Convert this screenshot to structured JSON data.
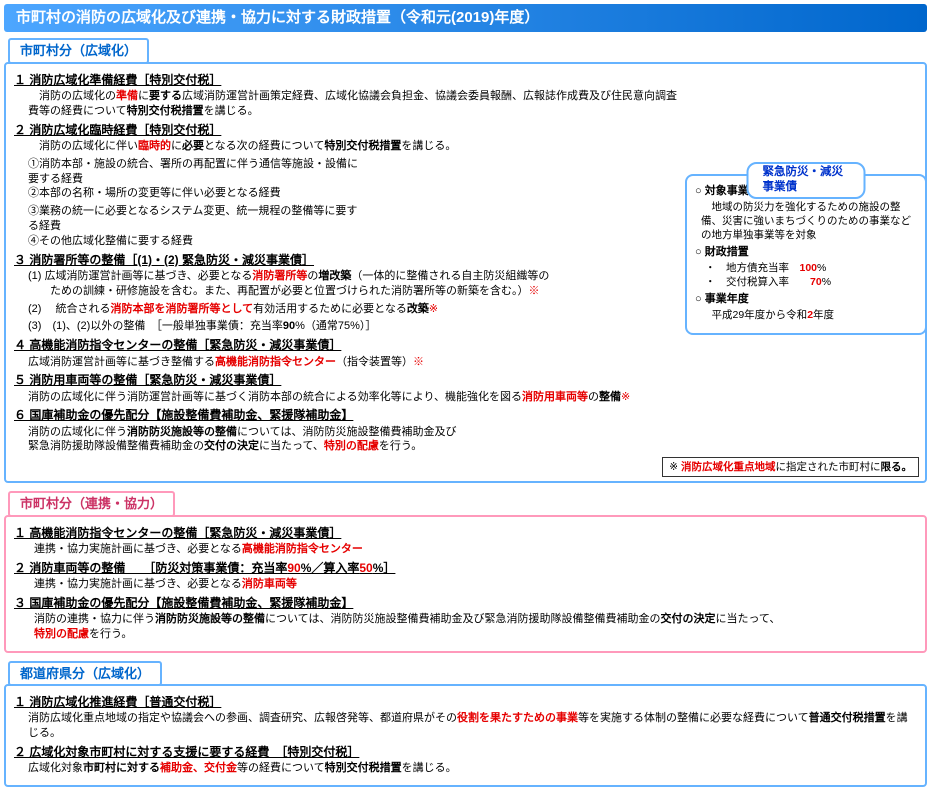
{
  "header": "市町村の消防の広域化及び連携・協力に対する財政措置（令和元(2019)年度）",
  "section1": {
    "tab": "市町村分（広域化）",
    "items": [
      {
        "head": "１ 消防広域化準備経費［特別交付税］",
        "body": [
          {
            "segs": [
              {
                "t": "　消防の広域化の"
              },
              {
                "t": "準備",
                "cls": "red bold"
              },
              {
                "t": "に"
              },
              {
                "t": "要する",
                "cls": "bold"
              },
              {
                "t": "広域消防運営計画策定経費、広域化協議会負担金、協議会委員報酬、広報誌作成費及び住民意向調査費等の経費について"
              },
              {
                "t": "特別交付税措置",
                "cls": "bold"
              },
              {
                "t": "を講じる。"
              }
            ]
          }
        ]
      },
      {
        "head": "２ 消防広域化臨時経費［特別交付税］",
        "body": [
          {
            "segs": [
              {
                "t": "　消防の広域化に伴い"
              },
              {
                "t": "臨時的",
                "cls": "red bold"
              },
              {
                "t": "に"
              },
              {
                "t": "必要",
                "cls": "bold"
              },
              {
                "t": "となる次の経費について"
              },
              {
                "t": "特別交付税措置",
                "cls": "bold"
              },
              {
                "t": "を講じる。"
              }
            ]
          },
          {
            "cols": [
              {
                "t": "①消防本部・施設の統合、署所の再配置に伴う通信等施設・設備に要する経費"
              },
              {
                "t": "②本部の名称・場所の変更等に伴い必要となる経費"
              }
            ]
          },
          {
            "cols": [
              {
                "t": "③業務の統一に必要となるシステム変更、統一規程の整備等に要する経費"
              },
              {
                "t": "④その他広域化整備に要する経費"
              }
            ]
          }
        ]
      },
      {
        "head": "３ 消防署所等の整備［(1)・(2) 緊急防災・減災事業債］",
        "body": [
          {
            "segs": [
              {
                "t": "(1) 広域消防運営計画等に基づき、必要となる"
              },
              {
                "t": "消防署所等",
                "cls": "red bold"
              },
              {
                "t": "の"
              },
              {
                "t": "増改築",
                "cls": "bold"
              },
              {
                "t": "（一体的に整備される自主防災組織等の\n　　ための訓練・研修施設を含む。また、再配置が必要と位置づけられた消防署所等の新築を含む。）"
              },
              {
                "t": "※",
                "cls": "red"
              }
            ]
          },
          {
            "segs": [
              {
                "t": "(2) 　統合される"
              },
              {
                "t": "消防本部を消防署所等として",
                "cls": "red bold"
              },
              {
                "t": "有効活用するために必要となる"
              },
              {
                "t": "改築",
                "cls": "bold"
              },
              {
                "t": "※",
                "cls": "red"
              }
            ]
          },
          {
            "segs": [
              {
                "t": "(3)　(1)、(2)以外の整備　［一般単独事業債：充当率"
              },
              {
                "t": "90",
                "cls": "bold"
              },
              {
                "t": "%（通常75%）］"
              }
            ]
          }
        ]
      },
      {
        "head": "４ 高機能消防指令センターの整備［緊急防災・減災事業債］",
        "body": [
          {
            "segs": [
              {
                "t": "広域消防運営計画等に基づき整備する"
              },
              {
                "t": "高機能消防指令センター",
                "cls": "red bold"
              },
              {
                "t": "（指令装置等）"
              },
              {
                "t": "※",
                "cls": "red"
              }
            ]
          }
        ]
      },
      {
        "head": "５ 消防用車両等の整備［緊急防災・減災事業債］",
        "body": [
          {
            "segs": [
              {
                "t": "消防の広域化に伴う消防運営計画等に基づく消防本部の統合による効率化等により、機能強化を図る"
              },
              {
                "t": "消防用車両等",
                "cls": "red bold"
              },
              {
                "t": "の"
              },
              {
                "t": "整備",
                "cls": "bold"
              },
              {
                "t": "※",
                "cls": "red"
              }
            ]
          }
        ]
      },
      {
        "head": "６ 国庫補助金の優先配分【施設整備費補助金、緊援隊補助金】",
        "body": [
          {
            "segs": [
              {
                "t": "消防の広域化に伴う"
              },
              {
                "t": "消防防災施設等の整備",
                "cls": "bold"
              },
              {
                "t": "については、消防防災施設整備費補助金及び\n緊急消防援助隊設備整備費補助金の"
              },
              {
                "t": "交付の決定",
                "cls": "bold"
              },
              {
                "t": "に当たって、"
              },
              {
                "t": "特別の配慮",
                "cls": "red bold"
              },
              {
                "t": "を行う。"
              }
            ]
          }
        ]
      }
    ],
    "callout": {
      "tab": "緊急防災・減災事業債",
      "s1h": "○ 対象事業",
      "s1b": "　地域の防災力を強化するための施設の整備、災害に強いまちづくりのための事業などの地方単独事業等を対象",
      "s2h": "○ 財政措置",
      "s2a_pre": "・　地方債充当率　",
      "s2a_val": "100",
      "s2a_suf": "%",
      "s2b_pre": "・　交付税算入率　　",
      "s2b_val": "70",
      "s2b_suf": "%",
      "s3h": "○ 事業年度",
      "s3b_pre": "　平成29年度から令和",
      "s3b_val": "2",
      "s3b_suf": "年度"
    },
    "note": {
      "pre": "※ ",
      "red": "消防広域化重点地域",
      "mid": "に指定された市町村に",
      "bold": "限る。"
    }
  },
  "section2": {
    "tab": "市町村分（連携・協力）",
    "items": [
      {
        "head": "１ 高機能消防指令センターの整備［緊急防災・減災事業債］",
        "body": [
          {
            "segs": [
              {
                "t": "連携・協力実施計画に基づき、必要となる"
              },
              {
                "t": "高機能消防指令センター",
                "cls": "red bold"
              }
            ]
          }
        ]
      },
      {
        "head_segs": [
          {
            "t": "２ 消防車両等の整備　　［防災対策事業債：充当率"
          },
          {
            "t": "90",
            "cls": "red"
          },
          {
            "t": "%／算入率"
          },
          {
            "t": "50",
            "cls": "red"
          },
          {
            "t": "%］"
          }
        ],
        "body": [
          {
            "segs": [
              {
                "t": "連携・協力実施計画に基づき、必要となる"
              },
              {
                "t": "消防車両等",
                "cls": "red bold"
              }
            ]
          }
        ]
      },
      {
        "head": "３ 国庫補助金の優先配分【施設整備費補助金、緊援隊補助金】",
        "body": [
          {
            "segs": [
              {
                "t": "消防の連携・協力に伴う"
              },
              {
                "t": "消防防災施設等の整備",
                "cls": "bold"
              },
              {
                "t": "については、消防防災施設整備費補助金及び緊急消防援助隊設備整備費補助金の"
              },
              {
                "t": "交付の決定",
                "cls": "bold"
              },
              {
                "t": "に当たって、"
              },
              {
                "t": "\n特別の配慮",
                "cls": "red bold"
              },
              {
                "t": "を行う。"
              }
            ]
          }
        ]
      }
    ]
  },
  "section3": {
    "tab": "都道府県分（広域化）",
    "items": [
      {
        "head": "１ 消防広域化推進経費［普通交付税］",
        "body": [
          {
            "segs": [
              {
                "t": "消防広域化重点地域の指定や協議会への参画、調査研究、広報啓発等、都道府県がその"
              },
              {
                "t": "役割を果たすための事業",
                "cls": "red bold"
              },
              {
                "t": "等を実施する体制の整備に必要な経費について"
              },
              {
                "t": "普通交付税措置",
                "cls": "bold"
              },
              {
                "t": "を講じる。"
              }
            ]
          }
        ]
      },
      {
        "head": "２ 広域化対象市町村に対する支援に要する経費　［特別交付税］",
        "body": [
          {
            "segs": [
              {
                "t": "広域化対象"
              },
              {
                "t": "市町村に対する",
                "cls": "bold"
              },
              {
                "t": "補助金、交付金",
                "cls": "red bold"
              },
              {
                "t": "等の経費について"
              },
              {
                "t": "特別交付税措置",
                "cls": "bold"
              },
              {
                "t": "を講じる。"
              }
            ]
          }
        ]
      }
    ]
  }
}
